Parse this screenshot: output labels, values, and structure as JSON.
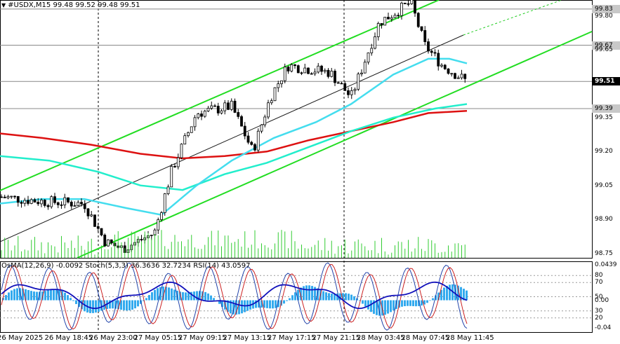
{
  "header": {
    "symbol_line": "#USDX,M15  99.48 99.52 99.48 99.51"
  },
  "indicator_header": "OsMA(12,26,9) -0.0092  Stoch(5,3,3) 36.3636 32.7234  RSI(14) 43.0597",
  "price_axis": [
    {
      "text": "99.83",
      "v": 99.83,
      "style": "hl"
    },
    {
      "text": "99.80",
      "v": 99.8,
      "style": ""
    },
    {
      "text": "99.67",
      "v": 99.67,
      "style": "hl"
    },
    {
      "text": "99.65",
      "v": 99.65,
      "style": ""
    },
    {
      "text": "99.51",
      "v": 99.51,
      "style": "cur"
    },
    {
      "text": "99.39",
      "v": 99.39,
      "style": "hl"
    },
    {
      "text": "99.35",
      "v": 99.35,
      "style": ""
    },
    {
      "text": "99.20",
      "v": 99.2,
      "style": ""
    },
    {
      "text": "99.05",
      "v": 99.05,
      "style": ""
    },
    {
      "text": "98.90",
      "v": 98.9,
      "style": ""
    },
    {
      "text": "98.75",
      "v": 98.75,
      "style": ""
    }
  ],
  "indicator_axis": [
    {
      "text": "0.0439",
      "v": 100
    },
    {
      "text": "80",
      "v": 80
    },
    {
      "text": "70",
      "v": 70
    },
    {
      "text": "50",
      "v": 50
    },
    {
      "text": "0.00",
      "v": 45
    },
    {
      "text": "30",
      "v": 30
    },
    {
      "text": "20",
      "v": 20
    },
    {
      "text": "-0.04",
      "v": 0
    }
  ],
  "time_axis": [
    "26 May 2025",
    "26 May 18:45",
    "26 May 23:00",
    "27 May 05:15",
    "27 May 09:15",
    "27 May 13:15",
    "27 May 17:15",
    "27 May 21:15",
    "28 May 03:45",
    "28 May 07:45",
    "28 May 11:45"
  ],
  "colors": {
    "candle": "#000000",
    "channel": "#22dd22",
    "ma_red": "#dd1111",
    "ma_green": "#22eecc",
    "ma_cyan": "#44ddee",
    "volume": "#33cc33",
    "osma": "#33aaee",
    "stoch_main": "#2244aa",
    "stoch_signal": "#cc2222",
    "rsi": "#1111bb",
    "grid": "#000000"
  },
  "chart_data": {
    "type": "candlestick",
    "symbol": "#USDX",
    "timeframe": "M15",
    "ohlc_last": {
      "open": 99.48,
      "high": 99.52,
      "low": 99.48,
      "close": 99.51
    },
    "ylim": [
      98.73,
      99.87
    ],
    "indicators": {
      "OsMA": -0.0092,
      "Stoch_main": 36.3636,
      "Stoch_signal": 32.7234,
      "RSI": 43.0597
    }
  }
}
